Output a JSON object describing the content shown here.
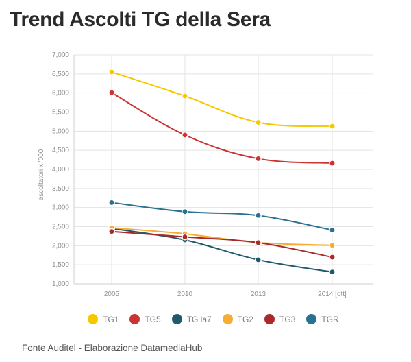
{
  "page": {
    "title": "Trend Ascolti TG della Sera",
    "source": "Fonte Auditel - Elaborazione DatamediaHub"
  },
  "chart_data": {
    "type": "line",
    "title": "Trend Ascolti TG della Sera",
    "xlabel": "",
    "ylabel": "ascoltatori x '000",
    "categories": [
      "2005",
      "2010",
      "2013",
      "2014 [ott]"
    ],
    "ylim": [
      1000,
      7000
    ],
    "yticks": [
      1000,
      1500,
      2000,
      2500,
      3000,
      3500,
      4000,
      4500,
      5000,
      5500,
      6000,
      6500,
      7000
    ],
    "ytick_labels": [
      "1,000",
      "1,500",
      "2,000",
      "2,500",
      "3,000",
      "3,500",
      "4,000",
      "4,500",
      "5,000",
      "5,500",
      "6,000",
      "6,500",
      "7,000"
    ],
    "grid": true,
    "legend_position": "bottom",
    "series": [
      {
        "name": "TG1",
        "color": "#f5c800",
        "values": [
          6550,
          5920,
          5230,
          5130
        ]
      },
      {
        "name": "TG5",
        "color": "#cc3333",
        "values": [
          6010,
          4900,
          4280,
          4160
        ]
      },
      {
        "name": "TG la7",
        "color": "#1f5a6a",
        "values": [
          2450,
          2150,
          1630,
          1310
        ]
      },
      {
        "name": "TG2",
        "color": "#f5ad33",
        "values": [
          2470,
          2310,
          2080,
          2010
        ]
      },
      {
        "name": "TG3",
        "color": "#a82a2a",
        "values": [
          2370,
          2230,
          2080,
          1700
        ]
      },
      {
        "name": "TGR",
        "color": "#2a7090",
        "values": [
          3130,
          2890,
          2790,
          2410
        ]
      }
    ]
  }
}
